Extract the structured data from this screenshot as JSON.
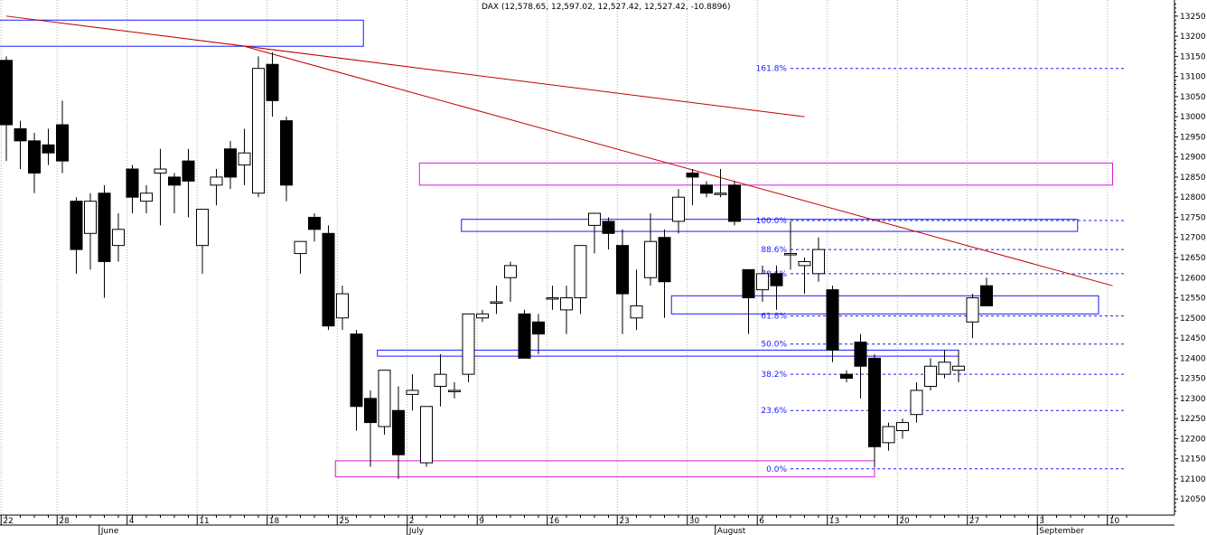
{
  "chart_data": {
    "type": "candlestick",
    "title": "DAX (12,578.65, 12,597.02, 12,527.42, 12,527.42, -10.8896)",
    "ylim": [
      12010,
      13290
    ],
    "y_ticks": [
      13250,
      13200,
      13150,
      13100,
      13050,
      13000,
      12950,
      12900,
      12850,
      12800,
      12750,
      12700,
      12650,
      12600,
      12550,
      12500,
      12450,
      12400,
      12350,
      12300,
      12250,
      12200,
      12150,
      12100,
      12050
    ],
    "x_day_ticks": [
      {
        "label": "22",
        "pos": 0
      },
      {
        "label": "28",
        "pos": 4
      },
      {
        "label": "4",
        "pos": 9
      },
      {
        "label": "11",
        "pos": 14
      },
      {
        "label": "18",
        "pos": 19
      },
      {
        "label": "25",
        "pos": 24
      },
      {
        "label": "2",
        "pos": 29
      },
      {
        "label": "9",
        "pos": 34
      },
      {
        "label": "16",
        "pos": 39
      },
      {
        "label": "23",
        "pos": 44
      },
      {
        "label": "30",
        "pos": 49
      },
      {
        "label": "6",
        "pos": 54
      },
      {
        "label": "13",
        "pos": 59
      },
      {
        "label": "20",
        "pos": 64
      },
      {
        "label": "27",
        "pos": 69
      },
      {
        "label": "3",
        "pos": 74
      },
      {
        "label": "10",
        "pos": 79
      }
    ],
    "x_month_ticks": [
      {
        "label": "June",
        "pos": 7
      },
      {
        "label": "July",
        "pos": 29
      },
      {
        "label": "August",
        "pos": 51
      },
      {
        "label": "September",
        "pos": 74
      }
    ],
    "candles": [
      [
        13140,
        13150,
        12890,
        12980
      ],
      [
        12970,
        12990,
        12870,
        12940
      ],
      [
        12940,
        12960,
        12810,
        12860
      ],
      [
        12930,
        12970,
        12880,
        12910
      ],
      [
        12980,
        13040,
        12860,
        12890
      ],
      [
        12790,
        12800,
        12610,
        12670
      ],
      [
        12710,
        12810,
        12620,
        12790
      ],
      [
        12810,
        12830,
        12550,
        12640
      ],
      [
        12680,
        12760,
        12640,
        12720
      ],
      [
        12870,
        12880,
        12760,
        12800
      ],
      [
        12790,
        12830,
        12760,
        12810
      ],
      [
        12860,
        12920,
        12730,
        12870
      ],
      [
        12850,
        12860,
        12760,
        12830
      ],
      [
        12890,
        12920,
        12750,
        12840
      ],
      [
        12680,
        12770,
        12610,
        12770
      ],
      [
        12830,
        12870,
        12780,
        12850
      ],
      [
        12920,
        12940,
        12820,
        12850
      ],
      [
        12880,
        12970,
        12830,
        12910
      ],
      [
        12810,
        13150,
        12800,
        13120
      ],
      [
        13130,
        13160,
        13000,
        13040
      ],
      [
        12990,
        13000,
        12790,
        12830
      ],
      [
        12660,
        12680,
        12610,
        12690
      ],
      [
        12750,
        12760,
        12690,
        12720
      ],
      [
        12710,
        12730,
        12470,
        12480
      ],
      [
        12500,
        12580,
        12470,
        12560
      ],
      [
        12460,
        12470,
        12220,
        12280
      ],
      [
        12300,
        12320,
        12130,
        12240
      ],
      [
        12230,
        12370,
        12210,
        12370
      ],
      [
        12270,
        12330,
        12100,
        12160
      ],
      [
        12310,
        12360,
        12270,
        12320
      ],
      [
        12140,
        12280,
        12130,
        12280
      ],
      [
        12330,
        12410,
        12280,
        12360
      ],
      [
        12320,
        12340,
        12300,
        12320
      ],
      [
        12360,
        12510,
        12340,
        12510
      ],
      [
        12500,
        12520,
        12490,
        12510
      ],
      [
        12540,
        12580,
        12510,
        12540
      ],
      [
        12600,
        12640,
        12540,
        12630
      ],
      [
        12510,
        12520,
        12400,
        12400
      ],
      [
        12490,
        12510,
        12410,
        12460
      ],
      [
        12550,
        12580,
        12520,
        12550
      ],
      [
        12520,
        12580,
        12460,
        12550
      ],
      [
        12550,
        12680,
        12510,
        12680
      ],
      [
        12730,
        12760,
        12660,
        12760
      ],
      [
        12740,
        12750,
        12670,
        12710
      ],
      [
        12680,
        12720,
        12460,
        12560
      ],
      [
        12500,
        12620,
        12470,
        12530
      ],
      [
        12600,
        12760,
        12580,
        12690
      ],
      [
        12700,
        12720,
        12500,
        12590
      ],
      [
        12740,
        12820,
        12710,
        12800
      ],
      [
        12860,
        12870,
        12780,
        12850
      ],
      [
        12830,
        12840,
        12800,
        12810
      ],
      [
        12810,
        12870,
        12800,
        12810
      ],
      [
        12830,
        12840,
        12730,
        12740
      ],
      [
        12620,
        12620,
        12460,
        12550
      ],
      [
        12570,
        12630,
        12540,
        12610
      ],
      [
        12610,
        12630,
        12520,
        12580
      ],
      [
        12660,
        12740,
        12620,
        12660
      ],
      [
        12630,
        12650,
        12560,
        12640
      ],
      [
        12610,
        12700,
        12590,
        12670
      ],
      [
        12570,
        12580,
        12390,
        12420
      ],
      [
        12360,
        12370,
        12340,
        12350
      ],
      [
        12440,
        12460,
        12300,
        12380
      ],
      [
        12400,
        12410,
        12130,
        12180
      ],
      [
        12190,
        12240,
        12170,
        12230
      ],
      [
        12220,
        12250,
        12200,
        12240
      ],
      [
        12260,
        12340,
        12240,
        12320
      ],
      [
        12330,
        12400,
        12320,
        12380
      ],
      [
        12360,
        12420,
        12350,
        12390
      ],
      [
        12370,
        12420,
        12340,
        12380
      ],
      [
        12490,
        12560,
        12450,
        12550
      ],
      [
        12580,
        12600,
        12530,
        12530
      ]
    ],
    "fib_levels": [
      {
        "label": "161.8%",
        "value": 13120
      },
      {
        "label": "100.0%",
        "value": 12742
      },
      {
        "label": "88.6%",
        "value": 12670
      },
      {
        "label": "78.6%",
        "value": 12610
      },
      {
        "label": "61.8%",
        "value": 12505
      },
      {
        "label": "50.0%",
        "value": 12435
      },
      {
        "label": "38.2%",
        "value": 12360
      },
      {
        "label": "23.6%",
        "value": 12270
      },
      {
        "label": "0.0%",
        "value": 12125
      }
    ],
    "fib_x_range": [
      56,
      80
    ],
    "rects": [
      {
        "color": "#1a1aff",
        "x0": -1,
        "x1": 25.5,
        "ytop": 13240,
        "ybot": 13175
      },
      {
        "color": "#d81bd8",
        "x0": 29.5,
        "x1": 79,
        "ytop": 12885,
        "ybot": 12830
      },
      {
        "color": "#1a1aff",
        "x0": 32.5,
        "x1": 76.5,
        "ytop": 12745,
        "ybot": 12715
      },
      {
        "color": "#1a1aff",
        "x0": 47.5,
        "x1": 78,
        "ytop": 12555,
        "ybot": 12510
      },
      {
        "color": "#1a1aff",
        "x0": 26.5,
        "x1": 68,
        "ytop": 12420,
        "ybot": 12405
      },
      {
        "color": "#d81bd8",
        "x0": 23.5,
        "x1": 62,
        "ytop": 12145,
        "ybot": 12105
      }
    ],
    "trendlines": [
      {
        "color": "#c00000",
        "x0": 0,
        "y0": 13250,
        "x1": 57,
        "y1": 13000
      },
      {
        "color": "#c00000",
        "x0": 17,
        "y0": 13175,
        "x1": 79,
        "y1": 12580
      }
    ]
  }
}
